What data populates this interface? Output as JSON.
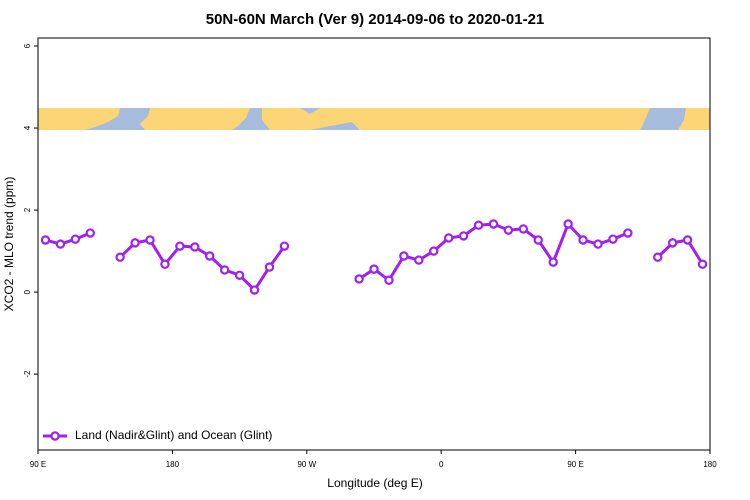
{
  "chart_data": {
    "type": "line",
    "title": "50N-60N March (Ver 9)   2014-09-06 to 2020-01-21",
    "xlabel": "Longitude (deg E)",
    "ylabel": "XCO2 - MLO trend (ppm)",
    "x": [
      95,
      105,
      115,
      125,
      135,
      145,
      155,
      165,
      175,
      185,
      195,
      205,
      215,
      225,
      235,
      245,
      255,
      265,
      275,
      285,
      295,
      305,
      315,
      325,
      335,
      345,
      355,
      365,
      375,
      385,
      395,
      405,
      415,
      425,
      435,
      445,
      455,
      465,
      475,
      485,
      495,
      505,
      515,
      525,
      535
    ],
    "series": [
      {
        "name": "Land (Nadir&Glint) and Ocean (Glint)",
        "color": "#a020f0",
        "values": [
          1.27,
          1.17,
          1.29,
          1.44,
          null,
          0.85,
          1.2,
          1.27,
          0.68,
          1.12,
          1.1,
          0.88,
          0.54,
          0.41,
          0.05,
          0.61,
          1.12,
          null,
          null,
          null,
          null,
          0.32,
          0.56,
          0.29,
          0.88,
          0.78,
          1.0,
          1.32,
          1.37,
          1.63,
          1.66,
          1.51,
          1.54,
          1.27,
          0.73,
          1.66,
          1.27,
          1.17,
          1.29,
          1.44,
          null,
          0.85,
          1.2,
          1.27,
          0.68
        ]
      }
    ],
    "xlim": [
      90,
      540
    ],
    "xticks": [
      {
        "value": 90,
        "label": "90 E"
      },
      180,
      {
        "value": 270,
        "label": "90 W"
      },
      {
        "value": 360,
        "label": "0"
      },
      {
        "value": 450,
        "label": "90 E"
      },
      {
        "value": 540,
        "label": "180"
      }
    ],
    "ylim": [
      -3.85,
      6.195
    ],
    "yticks": [
      -2,
      0,
      2,
      4,
      6
    ],
    "legend": "bottom-left"
  }
}
